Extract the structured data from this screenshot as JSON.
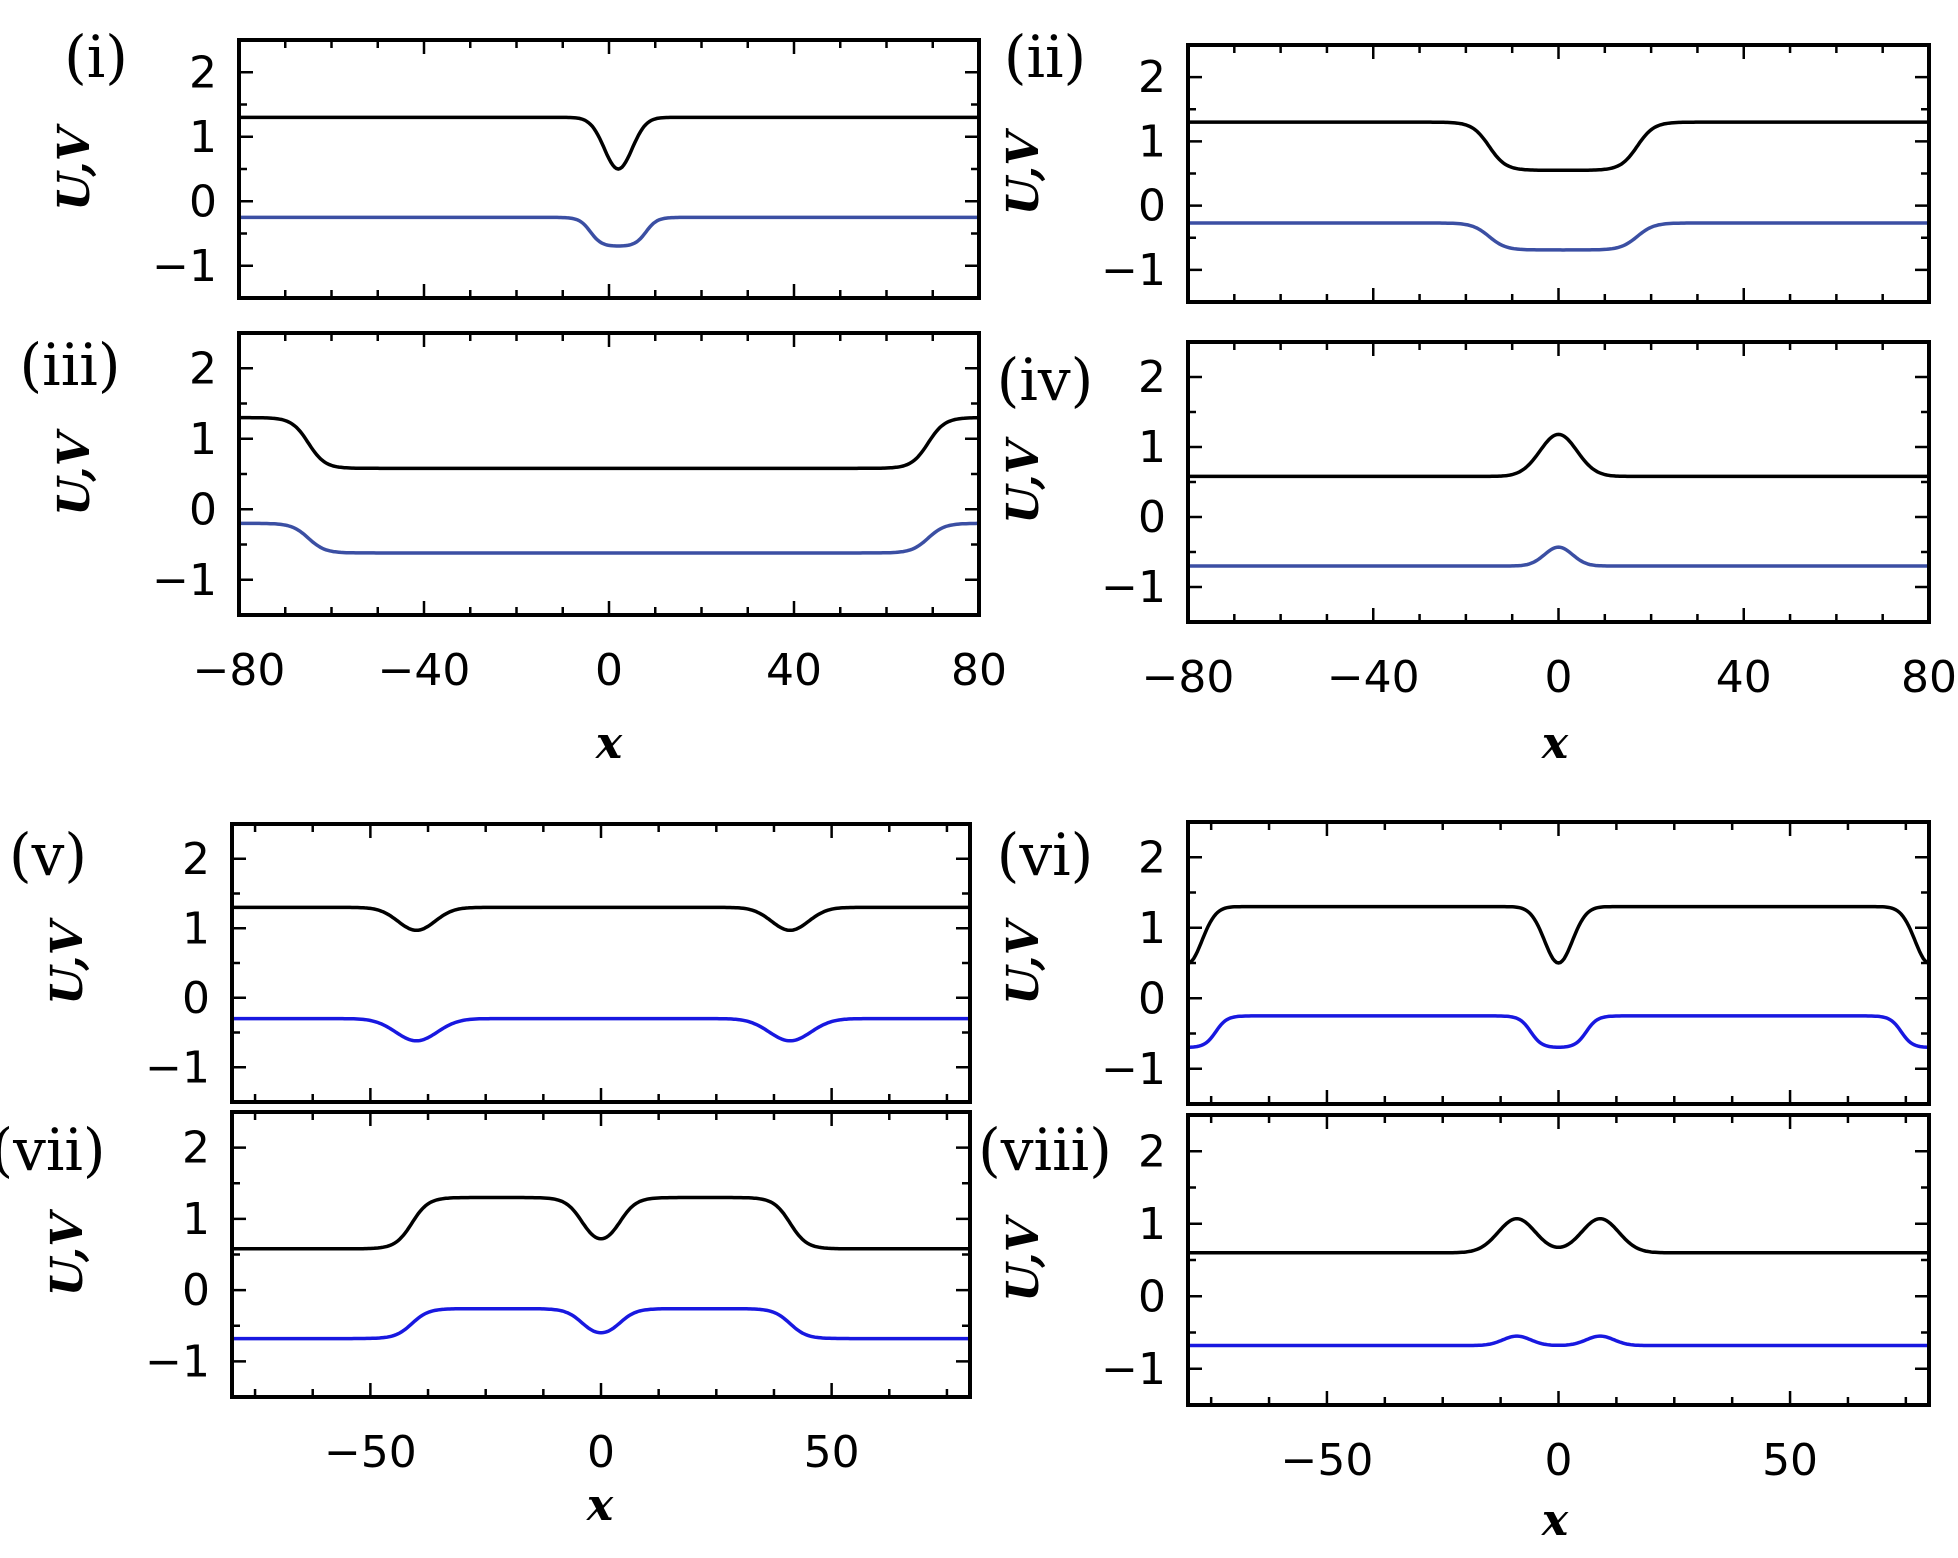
{
  "chart_data": [
    {
      "panel": "(i)",
      "type": "line",
      "ylabel": "U,V",
      "xlabel": "",
      "xlim": [
        -80,
        80
      ],
      "ylim": [
        -1.5,
        2.5
      ],
      "series": [
        {
          "name": "U",
          "color": "#000000",
          "base": 1.3,
          "features": [
            {
              "type": "gauss",
              "x": 2,
              "amp": -0.8,
              "width": 3
            }
          ]
        },
        {
          "name": "V",
          "color": "#3b4fa3",
          "base": -0.25,
          "features": [
            {
              "type": "box",
              "x1": -4,
              "x2": 8,
              "amp": -0.45,
              "width": 1.2
            }
          ]
        }
      ]
    },
    {
      "panel": "(ii)",
      "type": "line",
      "ylabel": "U,V",
      "xlabel": "",
      "xlim": [
        -80,
        80
      ],
      "ylim": [
        -1.5,
        2.5
      ],
      "series": [
        {
          "name": "U",
          "color": "#000000",
          "base": 1.3,
          "features": [
            {
              "type": "box",
              "x1": -15,
              "x2": 17,
              "amp": -0.75,
              "width": 1.8
            }
          ]
        },
        {
          "name": "V",
          "color": "#3b4fa3",
          "base": -0.27,
          "features": [
            {
              "type": "box",
              "x1": -15,
              "x2": 17,
              "amp": -0.42,
              "width": 1.8
            }
          ]
        }
      ]
    },
    {
      "panel": "(iii)",
      "type": "line",
      "ylabel": "U,V",
      "xlabel": "",
      "xlim": [
        -80,
        80
      ],
      "ylim": [
        -1.5,
        2.5
      ],
      "series": [
        {
          "name": "U",
          "color": "#000000",
          "base": 1.3,
          "features": [
            {
              "type": "box",
              "x1": -65,
              "x2": 69,
              "amp": -0.72,
              "width": 1.8
            }
          ]
        },
        {
          "name": "V",
          "color": "#3b4fa3",
          "base": -0.2,
          "features": [
            {
              "type": "box",
              "x1": -65,
              "x2": 69,
              "amp": -0.42,
              "width": 1.8
            }
          ]
        }
      ]
    },
    {
      "panel": "(iv)",
      "type": "line",
      "ylabel": "U,V",
      "xlabel": "x",
      "xlim": [
        -80,
        80
      ],
      "ylim": [
        -1.5,
        2.5
      ],
      "series": [
        {
          "name": "U",
          "color": "#000000",
          "base": 0.58,
          "features": [
            {
              "type": "gauss",
              "x": 0,
              "amp": 0.6,
              "width": 4
            }
          ]
        },
        {
          "name": "V",
          "color": "#3b4fa3",
          "base": -0.7,
          "features": [
            {
              "type": "gauss",
              "x": 0,
              "amp": 0.27,
              "width": 3
            }
          ]
        }
      ]
    },
    {
      "panel": "(v)",
      "type": "line",
      "ylabel": "U,V",
      "xlabel": "",
      "xlim": [
        -80,
        80
      ],
      "ylim": [
        -1.5,
        2.5
      ],
      "series": [
        {
          "name": "U",
          "color": "#000000",
          "base": 1.3,
          "features": [
            {
              "type": "gauss",
              "x": -40,
              "amp": -0.33,
              "width": 4
            },
            {
              "type": "gauss",
              "x": 41,
              "amp": -0.33,
              "width": 4
            }
          ]
        },
        {
          "name": "V",
          "color": "#1818e0",
          "base": -0.3,
          "features": [
            {
              "type": "gauss",
              "x": -40,
              "amp": -0.32,
              "width": 4.5
            },
            {
              "type": "gauss",
              "x": 41,
              "amp": -0.32,
              "width": 4.5
            }
          ]
        }
      ]
    },
    {
      "panel": "(vi)",
      "type": "line",
      "ylabel": "U,V",
      "xlabel": "",
      "xlim": [
        -80,
        80
      ],
      "ylim": [
        -1.5,
        2.5
      ],
      "series": [
        {
          "name": "U",
          "color": "#000000",
          "base": 1.3,
          "features": [
            {
              "type": "gauss",
              "x": 0,
              "amp": -0.8,
              "width": 3
            },
            {
              "type": "gauss",
              "x": 80,
              "amp": -0.8,
              "width": 3
            },
            {
              "type": "gauss",
              "x": -80,
              "amp": -0.8,
              "width": 3
            }
          ]
        },
        {
          "name": "V",
          "color": "#1818e0",
          "base": -0.25,
          "features": [
            {
              "type": "box",
              "x1": -6,
              "x2": 6,
              "amp": -0.45,
              "width": 1.2
            },
            {
              "type": "box",
              "x1": 74,
              "x2": 86,
              "amp": -0.45,
              "width": 1.2
            },
            {
              "type": "box",
              "x1": -86,
              "x2": -74,
              "amp": -0.45,
              "width": 1.2
            }
          ]
        }
      ]
    },
    {
      "panel": "(vii)",
      "type": "line",
      "ylabel": "U,V",
      "xlabel": "x",
      "xlim": [
        -80,
        80
      ],
      "ylim": [
        -1.5,
        2.5
      ],
      "series": [
        {
          "name": "U",
          "color": "#000000",
          "base": 0.58,
          "features": [
            {
              "type": "box",
              "x1": -41,
              "x2": -4,
              "amp": 0.72,
              "width": 1.8
            },
            {
              "type": "box",
              "x1": 4,
              "x2": 41,
              "amp": 0.72,
              "width": 1.8
            }
          ]
        },
        {
          "name": "V",
          "color": "#1818e0",
          "base": -0.68,
          "features": [
            {
              "type": "box",
              "x1": -41,
              "x2": -4,
              "amp": 0.42,
              "width": 1.8
            },
            {
              "type": "box",
              "x1": 4,
              "x2": 41,
              "amp": 0.42,
              "width": 1.8
            }
          ]
        }
      ]
    },
    {
      "panel": "(viii)",
      "type": "line",
      "ylabel": "U,V",
      "xlabel": "x",
      "xlim": [
        -80,
        80
      ],
      "ylim": [
        -1.5,
        2.5
      ],
      "series": [
        {
          "name": "U",
          "color": "#000000",
          "base": 0.6,
          "features": [
            {
              "type": "gauss",
              "x": -9,
              "amp": 0.47,
              "width": 4
            },
            {
              "type": "gauss",
              "x": 9,
              "amp": 0.47,
              "width": 4
            }
          ]
        },
        {
          "name": "V",
          "color": "#1818e0",
          "base": -0.68,
          "features": [
            {
              "type": "gauss",
              "x": -9,
              "amp": 0.13,
              "width": 3
            },
            {
              "type": "gauss",
              "x": 9,
              "amp": 0.13,
              "width": 3
            }
          ]
        }
      ]
    }
  ],
  "axes": {
    "ytick_labels": [
      "2",
      "1",
      "0",
      "−1"
    ],
    "ytick_values": [
      2,
      1,
      0,
      -1
    ],
    "xticks_top": {
      "values": [
        -80,
        -40,
        0,
        40,
        80
      ],
      "labels": [
        "−80",
        "−40",
        "0",
        "40",
        "80"
      ]
    },
    "xticks_bottom": {
      "values": [
        -50,
        0,
        50
      ],
      "labels": [
        "−50",
        "0",
        "50"
      ]
    }
  }
}
